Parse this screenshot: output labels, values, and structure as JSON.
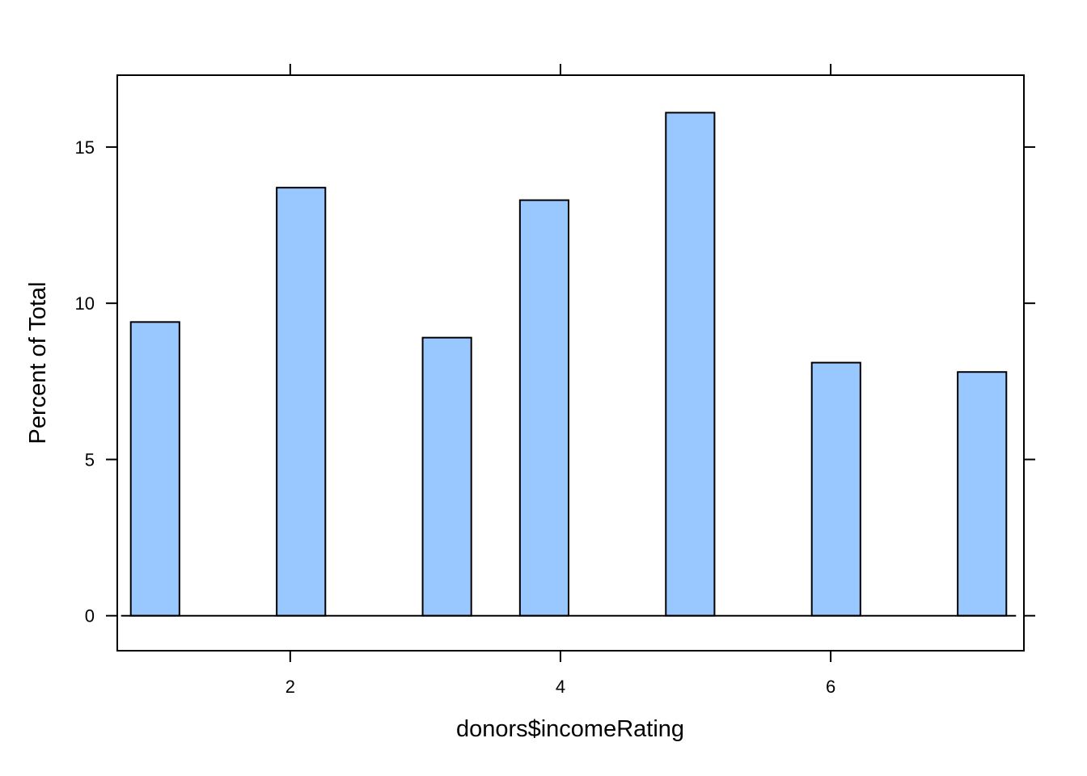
{
  "chart_data": {
    "type": "bar",
    "title": "",
    "xlabel": "donors$incomeRating",
    "ylabel": "Percent of Total",
    "xlim": [
      0.72,
      7.43
    ],
    "ylim": [
      -1.12,
      17.3
    ],
    "x_ticks": [
      2,
      4,
      6
    ],
    "x_tick_labels": [
      "2",
      "4",
      "6"
    ],
    "y_ticks": [
      0,
      5,
      10,
      15
    ],
    "y_tick_labels": [
      "0",
      "5",
      "10",
      "15"
    ],
    "bins": [
      {
        "x_start": 0.82,
        "x_end": 1.18,
        "value": 9.4
      },
      {
        "x_start": 1.9,
        "x_end": 2.26,
        "value": 13.7
      },
      {
        "x_start": 2.98,
        "x_end": 3.34,
        "value": 8.9
      },
      {
        "x_start": 3.7,
        "x_end": 4.06,
        "value": 13.3
      },
      {
        "x_start": 4.78,
        "x_end": 5.14,
        "value": 16.1
      },
      {
        "x_start": 5.86,
        "x_end": 6.22,
        "value": 8.1
      },
      {
        "x_start": 6.94,
        "x_end": 7.3,
        "value": 7.8
      }
    ],
    "baseline_range": [
      0.82,
      7.3
    ],
    "grid": false,
    "bar_fill": "#99c7ff",
    "bar_stroke": "#000000"
  }
}
